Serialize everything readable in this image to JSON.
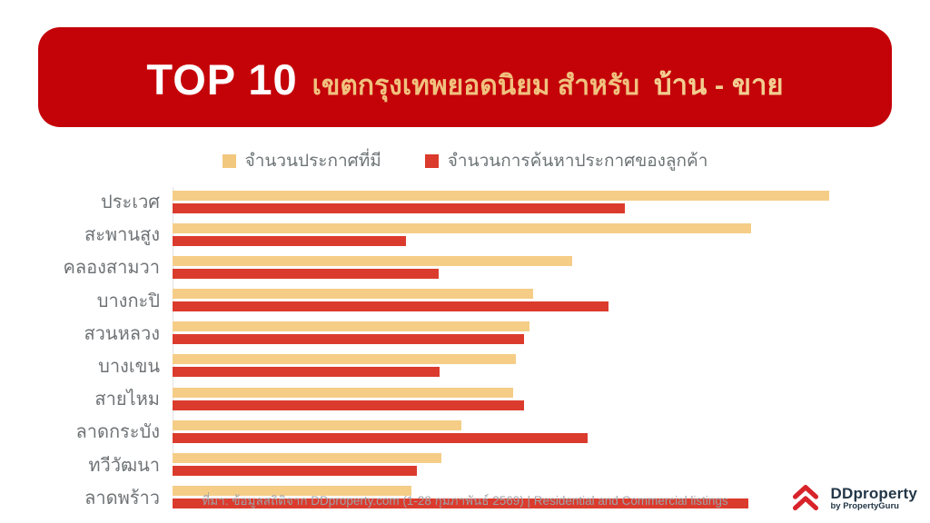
{
  "header": {
    "badge": "TOP 10",
    "title": "เขตกรุงเทพยอดนิยม สำหรับ",
    "category": "บ้าน - ขาย"
  },
  "legend": [
    {
      "label": "จำนวนประกาศที่มี",
      "color": "#F2C87F"
    },
    {
      "label": "จำนวนการค้นหาประกาศของลูกค้า",
      "color": "#DB3B2D"
    }
  ],
  "chart_data": {
    "type": "bar",
    "orientation": "horizontal",
    "title": "TOP 10 เขตกรุงเทพยอดนิยม สำหรับ บ้าน - ขาย",
    "categories": [
      "ประเวศ",
      "สะพานสูง",
      "คลองสามวา",
      "บางกะปิ",
      "สวนหลวง",
      "บางเขน",
      "สายไหม",
      "ลาดกระบัง",
      "ทวีวัฒนา",
      "ลาดพร้าว"
    ],
    "series": [
      {
        "name": "จำนวนประกาศที่มี",
        "color": "#F5CD87",
        "values": [
          100,
          88.1,
          60.9,
          54.9,
          54.4,
          52.3,
          51.9,
          44.0,
          40.9,
          36.4
        ]
      },
      {
        "name": "จำนวนการค้นหาประกาศของลูกค้า",
        "color": "#DB3B2D",
        "values": [
          68.9,
          35.5,
          40.5,
          66.4,
          53.5,
          40.7,
          53.5,
          63.2,
          37.2,
          87.7
        ]
      }
    ],
    "value_note": "relative bar lengths as % of longest bar; no numeric axis labels shown in figure",
    "xlim": [
      0,
      100
    ],
    "grid": false,
    "legend_position": "top"
  },
  "footer": {
    "source": "ที่มา: ข้อมูลสถิติจาก DDproperty.com (1-28 กุมภาพันธ์ 2569) | Residential and Commercial listings"
  },
  "logo": {
    "name": "DDproperty",
    "sub": "by PropertyGuru"
  },
  "colors": {
    "banner_red": "#C40309",
    "title_gold": "#F0C17E",
    "bar_yellow": "#F5CD87",
    "bar_red": "#DB3B2D",
    "label_gray": "#6F7376",
    "footer_gray": "#9EA3A8",
    "logo_navy": "#233748",
    "logo_red": "#D8232A"
  }
}
